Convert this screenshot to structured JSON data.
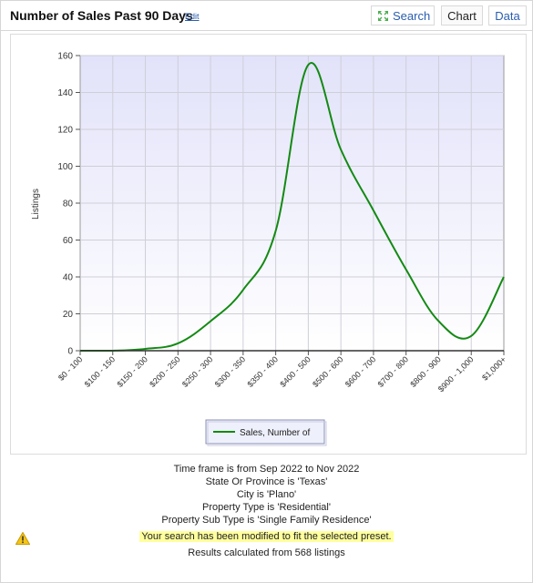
{
  "header": {
    "title": "Number of Sales Past 90 Days",
    "edit_label": "Edit",
    "search_label": "Search",
    "chart_label": "Chart",
    "data_label": "Data"
  },
  "chart_data": {
    "type": "line",
    "categories": [
      "$0 - 100",
      "$100 - 150",
      "$150 - 200",
      "$200 - 250",
      "$250 - 300",
      "$300 - 350",
      "$350 - 400",
      "$400 - 500",
      "$500 - 600",
      "$600 - 700",
      "$700 - 800",
      "$800 - 900",
      "$900 - 1,000",
      "$1,000+"
    ],
    "series": [
      {
        "name": "Sales, Number of",
        "values": [
          0,
          0,
          1,
          4,
          16,
          33,
          65,
          155,
          109,
          76,
          44,
          16,
          8,
          40
        ],
        "color": "#138a13"
      }
    ],
    "ylabel": "Listings",
    "xlabel": "",
    "ylim": [
      0,
      160
    ],
    "yticks": [
      "0",
      "20",
      "40",
      "60",
      "80",
      "100",
      "120",
      "140",
      "160"
    ],
    "grid": true,
    "legend_position": "bottom-center"
  },
  "info": {
    "timeframe": "Time frame is from Sep 2022 to Nov 2022",
    "state": "State Or Province is 'Texas'",
    "city": "City is 'Plano'",
    "property_type": "Property Type is 'Residential'",
    "property_sub_type": "Property Sub Type is 'Single Family Residence'",
    "warning": "Your search has been modified to fit the selected preset.",
    "results": "Results calculated from 568 listings"
  },
  "colors": {
    "line": "#138a13",
    "plot_gradient_top": "#e3e3fb",
    "highlight": "#ffff9e",
    "link": "#2a5db0"
  }
}
